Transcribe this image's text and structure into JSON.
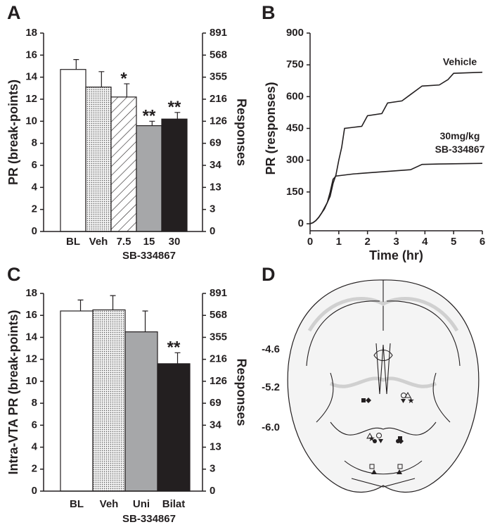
{
  "chart_data": [
    {
      "type": "bar",
      "panel": "A",
      "ylabel": "PR (break-points)",
      "y2label": "Responses",
      "categories": [
        "BL",
        "Veh",
        "7.5",
        "15",
        "30"
      ],
      "group_label": "SB-334867",
      "values": [
        14.7,
        13.1,
        12.2,
        9.6,
        10.2
      ],
      "errors": [
        0.9,
        1.4,
        1.2,
        0.4,
        0.6
      ],
      "colors": [
        "#ffffff",
        "#e6e6e6",
        "#ffffff",
        "#a6a7a9",
        "#231f20"
      ],
      "patterns": [
        "none",
        "dots",
        "hatch",
        "none",
        "none"
      ],
      "significance": [
        null,
        null,
        "*",
        "**",
        "**"
      ],
      "ylim": [
        0,
        18
      ],
      "yticks": [
        0,
        2,
        4,
        6,
        8,
        10,
        12,
        14,
        16,
        18
      ],
      "y2lim": [
        0,
        18
      ],
      "y2ticks": [
        0,
        {
          "value": 2,
          "label": "3"
        },
        {
          "value": 4,
          "label": "13"
        },
        {
          "value": 6,
          "label": "34"
        },
        {
          "value": 8,
          "label": "69"
        },
        {
          "value": 10,
          "label": "126"
        },
        {
          "value": 12,
          "label": "216"
        },
        {
          "value": 14,
          "label": "355"
        },
        {
          "value": 16,
          "label": "568"
        },
        {
          "value": 18,
          "label": "891"
        }
      ]
    },
    {
      "type": "line",
      "panel": "B",
      "xlabel": "Time (hr)",
      "ylabel": "PR (responses)",
      "xlim": [
        0,
        6
      ],
      "xticks": [
        0,
        1,
        2,
        3,
        4,
        5,
        6
      ],
      "ylim": [
        0,
        900
      ],
      "yticks": [
        0,
        150,
        300,
        450,
        600,
        750,
        900
      ],
      "series": [
        {
          "label": [
            "Vehicle"
          ],
          "color": "#231f20",
          "x": [
            0,
            0.1,
            0.2,
            0.3,
            0.4,
            0.5,
            0.6,
            0.7,
            0.8,
            0.9,
            1.0,
            1.1,
            1.2,
            1.5,
            1.8,
            2.0,
            2.5,
            2.7,
            3.2,
            3.5,
            3.9,
            4.5,
            4.8,
            5.0,
            6.0
          ],
          "values": [
            0,
            5,
            15,
            30,
            50,
            75,
            100,
            130,
            190,
            230,
            300,
            360,
            450,
            455,
            460,
            510,
            520,
            570,
            580,
            610,
            650,
            655,
            680,
            710,
            715
          ]
        },
        {
          "label": [
            "30mg/kg",
            "SB-334867"
          ],
          "color": "#231f20",
          "x": [
            0,
            0.1,
            0.2,
            0.3,
            0.4,
            0.5,
            0.6,
            0.7,
            0.8,
            0.9,
            1.2,
            1.5,
            2.0,
            2.5,
            3.0,
            3.5,
            3.9,
            4.5,
            6.0
          ],
          "values": [
            0,
            5,
            15,
            30,
            50,
            70,
            100,
            150,
            210,
            225,
            230,
            235,
            240,
            245,
            250,
            255,
            280,
            282,
            285
          ]
        }
      ]
    },
    {
      "type": "bar",
      "panel": "C",
      "ylabel": "Intra-VTA PR (break-points)",
      "y2label": "Responses",
      "categories": [
        "BL",
        "Veh",
        "Uni",
        "Bilat"
      ],
      "group_label": "SB-334867",
      "values": [
        16.4,
        16.5,
        14.5,
        11.6
      ],
      "errors": [
        1.0,
        1.3,
        1.9,
        1.0
      ],
      "colors": [
        "#ffffff",
        "#e6e6e6",
        "#a6a7a9",
        "#231f20"
      ],
      "patterns": [
        "none",
        "dots",
        "none",
        "none"
      ],
      "significance": [
        null,
        null,
        null,
        "**"
      ],
      "ylim": [
        0,
        18
      ],
      "yticks": [
        0,
        2,
        4,
        6,
        8,
        10,
        12,
        14,
        16,
        18
      ],
      "y2lim": [
        0,
        18
      ],
      "y2ticks": [
        0,
        {
          "value": 2,
          "label": "3"
        },
        {
          "value": 4,
          "label": "13"
        },
        {
          "value": 6,
          "label": "34"
        },
        {
          "value": 8,
          "label": "69"
        },
        {
          "value": 10,
          "label": "126"
        },
        {
          "value": 12,
          "label": "216"
        },
        {
          "value": 14,
          "label": "355"
        },
        {
          "value": 16,
          "label": "568"
        },
        {
          "value": 18,
          "label": "891"
        }
      ]
    }
  ],
  "diagram": {
    "panel": "D",
    "levels": [
      "-4.6",
      "-5.2",
      "-6.0"
    ]
  }
}
